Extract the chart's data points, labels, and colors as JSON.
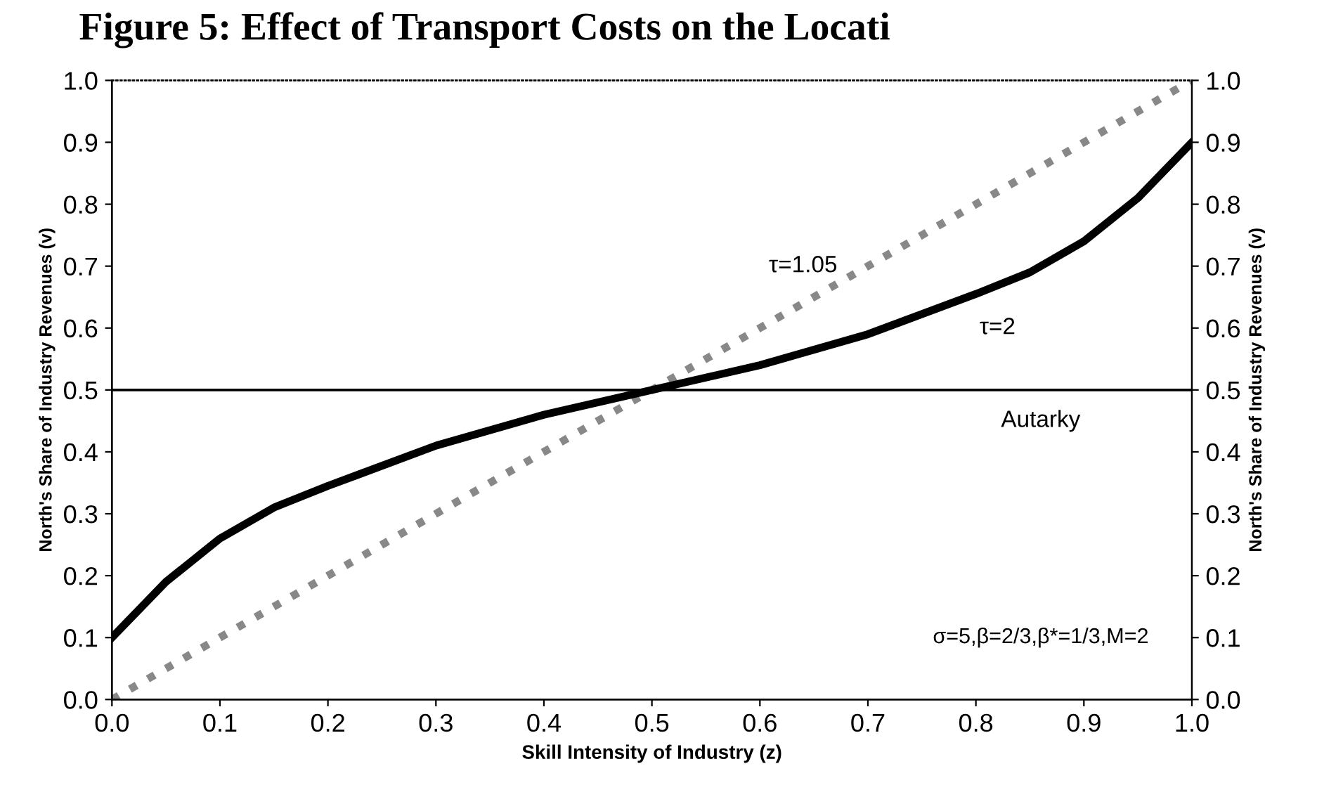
{
  "chart_data": {
    "type": "line",
    "title": "Figure 5: Effect of Transport Costs on the Locati",
    "xlabel": "Skill Intensity of Industry (z)",
    "ylabel": "North's Share of Industry Revenues (v)",
    "y2label": "North's Share of Industry Revenues (v)",
    "x": [
      0,
      0.05,
      0.1,
      0.15,
      0.2,
      0.3,
      0.4,
      0.5,
      0.6,
      0.7,
      0.8,
      0.85,
      0.9,
      0.95,
      1.0
    ],
    "series": [
      {
        "name": "Autarky",
        "color": "#000000",
        "line_style": "solid",
        "values": [
          0.5,
          0.5,
          0.5,
          0.5,
          0.5,
          0.5,
          0.5,
          0.5,
          0.5,
          0.5,
          0.5,
          0.5,
          0.5,
          0.5,
          0.5
        ]
      },
      {
        "name": "τ=1.05",
        "color": "#888888",
        "line_style": "dotted",
        "values": [
          0,
          0.05,
          0.1,
          0.15,
          0.2,
          0.3,
          0.4,
          0.5,
          0.6,
          0.7,
          0.8,
          0.85,
          0.9,
          0.95,
          1.0
        ]
      },
      {
        "name": "τ=2",
        "color": "#000000",
        "line_style": "solid",
        "values": [
          0.1,
          0.19,
          0.26,
          0.31,
          0.345,
          0.41,
          0.46,
          0.5,
          0.54,
          0.59,
          0.655,
          0.69,
          0.74,
          0.81,
          0.9
        ]
      }
    ],
    "annotations": [
      "σ=5,β=2/3,β*=1/3,M=2"
    ],
    "xlim": [
      0,
      1
    ],
    "xticks": [
      {
        "value": 0,
        "label": "0.0"
      },
      0.1,
      0.2,
      0.3,
      0.4,
      0.5,
      0.6,
      0.7,
      0.8,
      0.9,
      {
        "value": 1,
        "label": "1.0"
      }
    ],
    "ylim": [
      0,
      1
    ],
    "yticks": [
      {
        "value": 0,
        "label": "0.0"
      },
      0.1,
      0.2,
      0.3,
      0.4,
      0.5,
      0.6,
      0.7,
      0.8,
      0.9,
      {
        "value": 1,
        "label": "1.0"
      }
    ],
    "y2lim": [
      0,
      1
    ],
    "y2ticks": [
      {
        "value": 0,
        "label": "0.0"
      },
      0.1,
      0.2,
      0.3,
      0.4,
      0.5,
      0.6,
      0.7,
      0.8,
      0.9,
      {
        "value": 1,
        "label": "1.0"
      }
    ],
    "grid": false,
    "legend": false
  }
}
